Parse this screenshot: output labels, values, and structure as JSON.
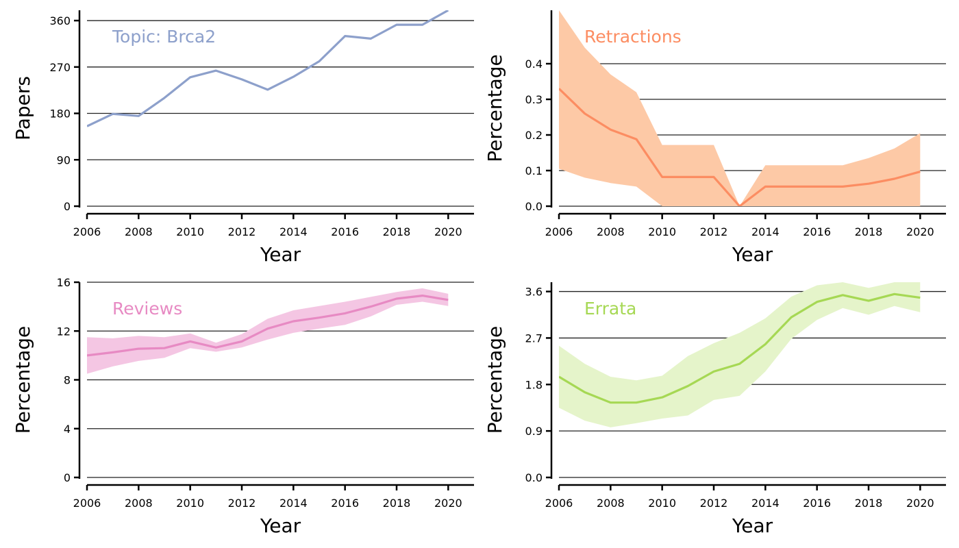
{
  "chart_data": [
    {
      "type": "line",
      "panel_label": "Topic: Brca2",
      "xlabel": "Year",
      "ylabel": "Papers",
      "xlim": [
        2006,
        2021
      ],
      "ylim": [
        0,
        380
      ],
      "xticks": [
        2006,
        2008,
        2010,
        2012,
        2014,
        2016,
        2018,
        2020
      ],
      "yticks": [
        0,
        90,
        180,
        270,
        360
      ],
      "ytick_labels": [
        "0",
        "90",
        "180",
        "270",
        "360"
      ],
      "grid": "horizontal",
      "color": "#8da0cb",
      "band_color": "",
      "x": [
        2006,
        2007,
        2008,
        2009,
        2010,
        2011,
        2012,
        2013,
        2014,
        2015,
        2016,
        2017,
        2018,
        2019,
        2020
      ],
      "values": [
        155,
        179,
        175,
        210,
        250,
        263,
        246,
        226,
        251,
        281,
        330,
        325,
        352,
        352,
        380
      ],
      "lower": [],
      "upper": []
    },
    {
      "type": "area",
      "panel_label": "Retractions",
      "xlabel": "Year",
      "ylabel": "Percentage",
      "xlim": [
        2006,
        2021
      ],
      "ylim": [
        0,
        0.55
      ],
      "xticks": [
        2006,
        2008,
        2010,
        2012,
        2014,
        2016,
        2018,
        2020
      ],
      "yticks": [
        0,
        0.1,
        0.2,
        0.3,
        0.4
      ],
      "ytick_labels": [
        "0.0",
        "0.1",
        "0.2",
        "0.3",
        "0.4"
      ],
      "grid": "horizontal",
      "color": "#fc8d62",
      "band_color": "#fdc9a6",
      "x": [
        2006,
        2007,
        2008,
        2009,
        2010,
        2011,
        2012,
        2013,
        2014,
        2015,
        2016,
        2017,
        2018,
        2019,
        2020
      ],
      "values": [
        0.33,
        0.26,
        0.215,
        0.188,
        0.082,
        0.082,
        0.082,
        0.0,
        0.055,
        0.055,
        0.055,
        0.055,
        0.063,
        0.077,
        0.097
      ],
      "lower": [
        0.105,
        0.08,
        0.065,
        0.055,
        0.0,
        0.0,
        0.0,
        0.0,
        0.0,
        0.0,
        0.0,
        0.0,
        0.0,
        0.0,
        0.0
      ],
      "upper": [
        0.55,
        0.445,
        0.37,
        0.32,
        0.172,
        0.172,
        0.172,
        0.0,
        0.115,
        0.115,
        0.115,
        0.115,
        0.135,
        0.162,
        0.205
      ]
    },
    {
      "type": "area",
      "panel_label": "Reviews",
      "xlabel": "Year",
      "ylabel": "Percentage",
      "xlim": [
        2006,
        2021
      ],
      "ylim": [
        0,
        16
      ],
      "xticks": [
        2006,
        2008,
        2010,
        2012,
        2014,
        2016,
        2018,
        2020
      ],
      "yticks": [
        0,
        4,
        8,
        12,
        16
      ],
      "ytick_labels": [
        "0",
        "4",
        "8",
        "12",
        "16"
      ],
      "grid": "horizontal",
      "color": "#e78ac3",
      "band_color": "#f4c6e3",
      "x": [
        2006,
        2007,
        2008,
        2009,
        2010,
        2011,
        2012,
        2013,
        2014,
        2015,
        2016,
        2017,
        2018,
        2019,
        2020
      ],
      "values": [
        10.0,
        10.25,
        10.55,
        10.6,
        11.15,
        10.65,
        11.15,
        12.2,
        12.8,
        13.1,
        13.45,
        14.0,
        14.65,
        14.9,
        14.55
      ],
      "lower": [
        8.5,
        9.1,
        9.55,
        9.8,
        10.6,
        10.3,
        10.65,
        11.3,
        11.85,
        12.2,
        12.5,
        13.2,
        14.15,
        14.4,
        14.05
      ],
      "upper": [
        11.5,
        11.4,
        11.6,
        11.5,
        11.8,
        11.05,
        11.75,
        13.0,
        13.7,
        14.05,
        14.4,
        14.8,
        15.2,
        15.5,
        15.05
      ]
    },
    {
      "type": "area",
      "panel_label": "Errata",
      "xlabel": "Year",
      "ylabel": "Percentage",
      "xlim": [
        2006,
        2021
      ],
      "ylim": [
        0,
        3.78
      ],
      "xticks": [
        2006,
        2008,
        2010,
        2012,
        2014,
        2016,
        2018,
        2020
      ],
      "yticks": [
        0,
        0.9,
        1.8,
        2.7,
        3.6
      ],
      "ytick_labels": [
        "0.0",
        "0.9",
        "1.8",
        "2.7",
        "3.6"
      ],
      "grid": "horizontal",
      "color": "#a6d854",
      "band_color": "#e5f4ca",
      "x": [
        2006,
        2007,
        2008,
        2009,
        2010,
        2011,
        2012,
        2013,
        2014,
        2015,
        2016,
        2017,
        2018,
        2019,
        2020
      ],
      "values": [
        1.95,
        1.65,
        1.45,
        1.45,
        1.55,
        1.77,
        2.05,
        2.2,
        2.58,
        3.1,
        3.4,
        3.53,
        3.42,
        3.55,
        3.48
      ],
      "lower": [
        1.35,
        1.1,
        0.97,
        1.05,
        1.14,
        1.2,
        1.5,
        1.58,
        2.05,
        2.68,
        3.05,
        3.28,
        3.15,
        3.32,
        3.2
      ],
      "upper": [
        2.55,
        2.2,
        1.95,
        1.88,
        1.97,
        2.35,
        2.6,
        2.8,
        3.08,
        3.5,
        3.72,
        3.78,
        3.67,
        3.78,
        3.78
      ]
    }
  ]
}
